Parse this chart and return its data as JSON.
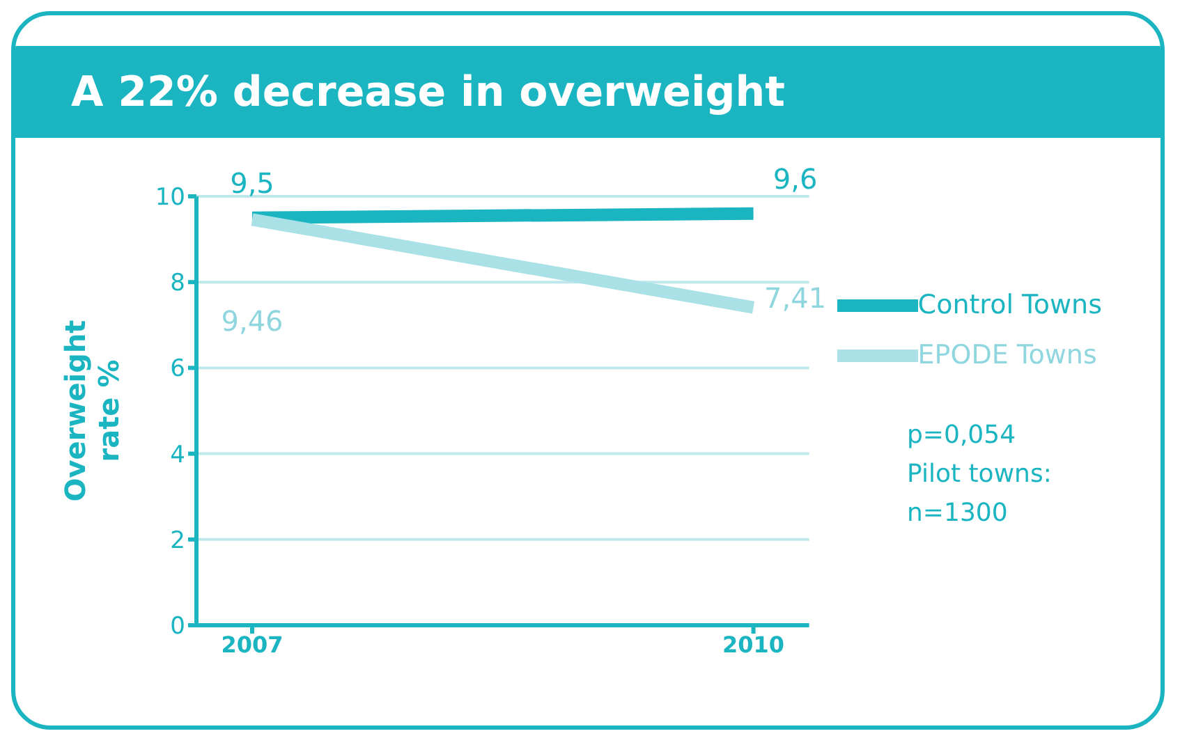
{
  "chart_data": {
    "type": "line",
    "title": "A 22% decrease in overweight",
    "ylabel": "Overweight rate %",
    "categories": [
      "2007",
      "2010"
    ],
    "series": [
      {
        "name": "Control Towns",
        "color": "#1bb5c2",
        "values": [
          9.5,
          9.6
        ],
        "value_labels": [
          "9,5",
          "9,6"
        ]
      },
      {
        "name": "EPODE Towns",
        "color": "#a9e1e7",
        "values": [
          9.46,
          7.41
        ],
        "value_labels": [
          "9,46",
          "7,41"
        ]
      }
    ],
    "ylim": [
      0,
      10
    ],
    "yticks": [
      0,
      2,
      4,
      6,
      8,
      10
    ],
    "grid": "y",
    "legend": "right",
    "marker": "none",
    "line_style": "solid",
    "annotations": [
      "p=0,054",
      "Pilot towns:",
      "n=1300"
    ]
  }
}
